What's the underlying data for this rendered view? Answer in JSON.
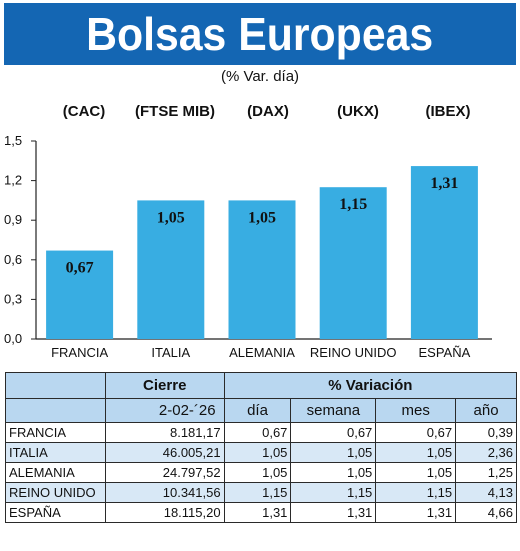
{
  "header": {
    "title": "Bolsas Europeas",
    "subtitle": "(% Var. día)"
  },
  "chart_data": {
    "type": "bar",
    "categories": [
      "FRANCIA",
      "ITALIA",
      "ALEMANIA",
      "REINO UNIDO",
      "ESPAÑA"
    ],
    "indices": [
      "(CAC)",
      "(FTSE MIB)",
      "(DAX)",
      "(UKX)",
      "(IBEX)"
    ],
    "values": [
      0.67,
      1.05,
      1.05,
      1.15,
      1.31
    ],
    "value_labels": [
      "0,67",
      "1,05",
      "1,05",
      "1,15",
      "1,31"
    ],
    "yticks": [
      0.0,
      0.3,
      0.6,
      0.9,
      1.2,
      1.5
    ],
    "ytick_labels": [
      "0,0",
      "0,3",
      "0,6",
      "0,9",
      "1,2",
      "1,5"
    ],
    "ylim": [
      0,
      1.5
    ],
    "bar_color": "#38ade2",
    "grid": false
  },
  "table": {
    "header_cierre": "Cierre",
    "header_variacion": "% Variación",
    "date": "2-02-´26",
    "columns": [
      "día",
      "semana",
      "mes",
      "año"
    ],
    "rows": [
      {
        "name": "FRANCIA",
        "cierre": "8.181,17",
        "dia": "0,67",
        "semana": "0,67",
        "mes": "0,67",
        "anio": "0,39"
      },
      {
        "name": "ITALIA",
        "cierre": "46.005,21",
        "dia": "1,05",
        "semana": "1,05",
        "mes": "1,05",
        "anio": "2,36"
      },
      {
        "name": "ALEMANIA",
        "cierre": "24.797,52",
        "dia": "1,05",
        "semana": "1,05",
        "mes": "1,05",
        "anio": "1,25"
      },
      {
        "name": "REINO UNIDO",
        "cierre": "10.341,56",
        "dia": "1,15",
        "semana": "1,15",
        "mes": "1,15",
        "anio": "4,13"
      },
      {
        "name": "ESPAÑA",
        "cierre": "18.115,20",
        "dia": "1,31",
        "semana": "1,31",
        "mes": "1,31",
        "anio": "4,66"
      }
    ]
  },
  "colors": {
    "header_bg": "#1466b3",
    "table_header_bg": "#b9d7f0",
    "table_alt_row": "#d8e8f6"
  }
}
